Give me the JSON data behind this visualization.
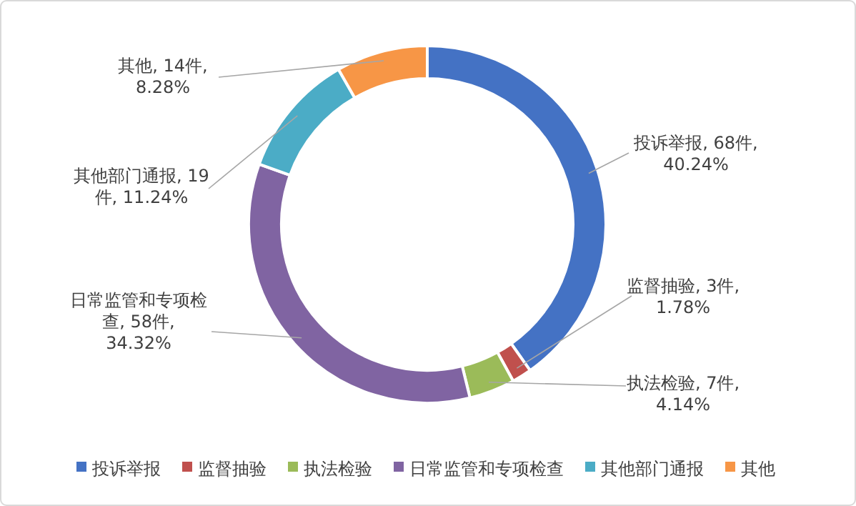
{
  "chart_data": {
    "type": "donut",
    "categories": [
      "投诉举报",
      "监督抽验",
      "执法检验",
      "日常监管和专项检查",
      "其他部门通报",
      "其他"
    ],
    "values": [
      68,
      3,
      7,
      58,
      19,
      14
    ],
    "colors": [
      "#4472c4",
      "#c0504d",
      "#9bbb59",
      "#8064a2",
      "#4bacc6",
      "#f79646"
    ],
    "value_labels": [
      "投诉举报, 68件, 40.24%",
      "监督抽验, 3件, 1.78%",
      "执法检验, 7件, 4.14%",
      "日常监管和专项检查, 58件, 34.32%",
      "其他部门通报, 19件, 11.24%",
      "其他, 14件, 8.28%"
    ],
    "legend": "bottom"
  }
}
